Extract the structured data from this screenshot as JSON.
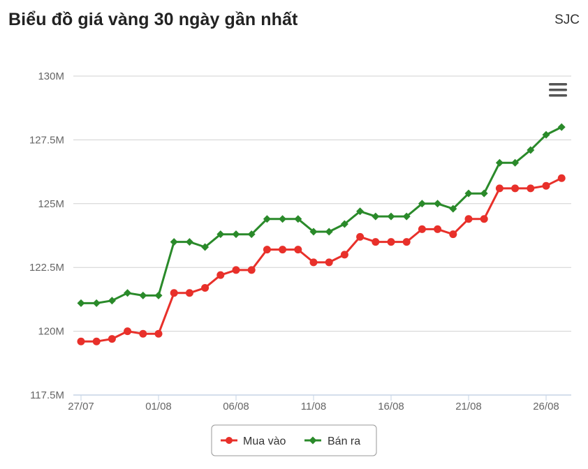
{
  "header": {
    "title": "Biểu đồ giá vàng 30 ngày gần nhất",
    "brand": "SJC"
  },
  "menu": {
    "icon": "hamburger-menu-icon"
  },
  "colors": {
    "mua_vao": "#e8302a",
    "ban_ra": "#2a8a2a",
    "grid": "#d0d0d0",
    "axis": "#c6d3e6"
  },
  "chart_data": {
    "type": "line",
    "title": "",
    "xlabel": "",
    "ylabel": "",
    "ylim": [
      117.5,
      130
    ],
    "y_ticks": [
      {
        "value": 130,
        "label": "130M"
      },
      {
        "value": 127.5,
        "label": "127.5M"
      },
      {
        "value": 125,
        "label": "125M"
      },
      {
        "value": 122.5,
        "label": "122.5M"
      },
      {
        "value": 120,
        "label": "120M"
      },
      {
        "value": 117.5,
        "label": "117.5M"
      }
    ],
    "x": [
      "27/07",
      "28/07",
      "29/07",
      "30/07",
      "31/07",
      "01/08",
      "02/08",
      "03/08",
      "04/08",
      "05/08",
      "06/08",
      "07/08",
      "08/08",
      "09/08",
      "10/08",
      "11/08",
      "12/08",
      "13/08",
      "14/08",
      "15/08",
      "16/08",
      "17/08",
      "18/08",
      "19/08",
      "20/08",
      "21/08",
      "22/08",
      "23/08",
      "24/08",
      "25/08",
      "26/08",
      "27/08"
    ],
    "x_tick_labels": [
      "27/07",
      "01/08",
      "06/08",
      "11/08",
      "16/08",
      "21/08",
      "26/08"
    ],
    "grid": true,
    "legend": "bottom-center",
    "series": [
      {
        "name": "Mua vào",
        "marker": "circle",
        "values": [
          119.6,
          119.6,
          119.7,
          120.0,
          119.9,
          119.9,
          121.5,
          121.5,
          121.7,
          122.2,
          122.4,
          122.4,
          123.2,
          123.2,
          123.2,
          122.7,
          122.7,
          123.0,
          123.7,
          123.5,
          123.5,
          123.5,
          124.0,
          124.0,
          123.8,
          124.4,
          124.4,
          125.6,
          125.6,
          125.6,
          125.7,
          126.0
        ]
      },
      {
        "name": "Bán ra",
        "marker": "diamond",
        "values": [
          121.1,
          121.1,
          121.2,
          121.5,
          121.4,
          121.4,
          123.5,
          123.5,
          123.3,
          123.8,
          123.8,
          123.8,
          124.4,
          124.4,
          124.4,
          123.9,
          123.9,
          124.2,
          124.7,
          124.5,
          124.5,
          124.5,
          125.0,
          125.0,
          124.8,
          125.4,
          125.4,
          126.6,
          126.6,
          127.1,
          127.7,
          128.0
        ]
      }
    ]
  }
}
